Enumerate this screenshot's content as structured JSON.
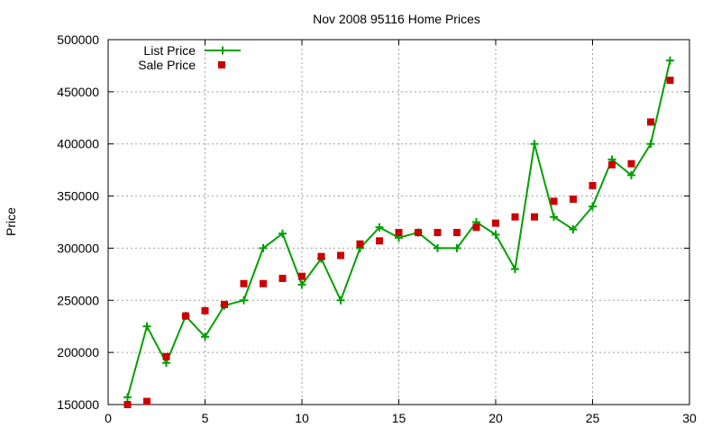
{
  "chart_data": {
    "type": "line",
    "title": "Nov 2008 95116 Home Prices",
    "xlabel": "",
    "ylabel": "Price",
    "xlim": [
      0,
      30
    ],
    "ylim": [
      150000,
      500000
    ],
    "xticks": [
      0,
      5,
      10,
      15,
      20,
      25,
      30
    ],
    "yticks": [
      150000,
      200000,
      250000,
      300000,
      350000,
      400000,
      450000,
      500000
    ],
    "grid": true,
    "legend_position": "top-left",
    "series": [
      {
        "name": "List Price",
        "style": "line-with-plus-markers",
        "color": "#00a000",
        "x": [
          1,
          2,
          3,
          4,
          5,
          6,
          7,
          8,
          9,
          10,
          11,
          12,
          13,
          14,
          15,
          16,
          17,
          18,
          19,
          20,
          21,
          22,
          23,
          24,
          25,
          26,
          27,
          28,
          29
        ],
        "y": [
          157000,
          225000,
          190000,
          235000,
          215000,
          245000,
          250000,
          300000,
          314000,
          265000,
          290000,
          250000,
          300000,
          320000,
          310000,
          315000,
          300000,
          300000,
          325000,
          313000,
          280000,
          400000,
          330000,
          318000,
          340000,
          385000,
          370000,
          400000,
          480000
        ]
      },
      {
        "name": "Sale Price",
        "style": "square-markers",
        "color": "#cc0000",
        "x": [
          1,
          2,
          3,
          4,
          5,
          6,
          7,
          8,
          9,
          10,
          11,
          12,
          13,
          14,
          15,
          16,
          17,
          18,
          19,
          20,
          21,
          22,
          23,
          24,
          25,
          26,
          27,
          28,
          29
        ],
        "y": [
          150000,
          153000,
          196000,
          235000,
          240000,
          246000,
          266000,
          266000,
          271000,
          273000,
          292000,
          293000,
          304000,
          307000,
          315000,
          315000,
          315000,
          315000,
          320000,
          324000,
          330000,
          330000,
          345000,
          347000,
          360000,
          380000,
          381000,
          421000,
          461000
        ]
      }
    ]
  }
}
